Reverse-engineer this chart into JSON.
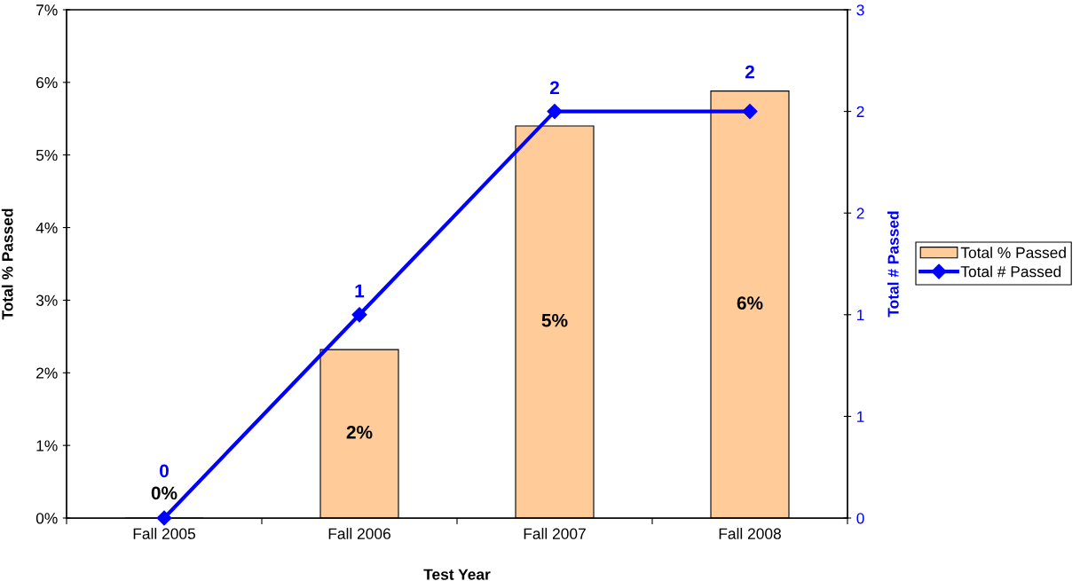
{
  "chart_data": {
    "type": "bar",
    "xlabel": "Test Year",
    "ylabel": "Total % Passed",
    "y2label": "Total # Passed",
    "categories": [
      "Fall 2005",
      "Fall 2006",
      "Fall 2007",
      "Fall 2008"
    ],
    "series": [
      {
        "name": "Total % Passed",
        "color": "#ffcc99",
        "values": [
          0,
          2.32,
          5.4,
          5.88
        ],
        "value_labels": [
          "0%",
          "2%",
          "5%",
          "6%"
        ]
      },
      {
        "name": "Total # Passed",
        "type": "line",
        "axis": "y2",
        "color": "#0000ff",
        "values": [
          0,
          1,
          2,
          2
        ],
        "value_labels": [
          "0",
          "1",
          "2",
          "2"
        ]
      }
    ],
    "ylim": [
      0,
      7
    ],
    "yticks": [
      {
        "value": 0,
        "label": "0%"
      },
      {
        "value": 1,
        "label": "1%"
      },
      {
        "value": 2,
        "label": "2%"
      },
      {
        "value": 3,
        "label": "3%"
      },
      {
        "value": 4,
        "label": "4%"
      },
      {
        "value": 5,
        "label": "5%"
      },
      {
        "value": 6,
        "label": "6%"
      },
      {
        "value": 7,
        "label": "7%"
      }
    ],
    "y2lim": [
      0,
      2.5
    ],
    "y2ticks": [
      0,
      {
        "value": 0.5,
        "label": "1"
      },
      1,
      {
        "value": 1.5,
        "label": "2"
      },
      2,
      {
        "value": 2.5,
        "label": "3"
      }
    ],
    "legend": "right",
    "marker": "diamond",
    "line_style": "solid"
  }
}
